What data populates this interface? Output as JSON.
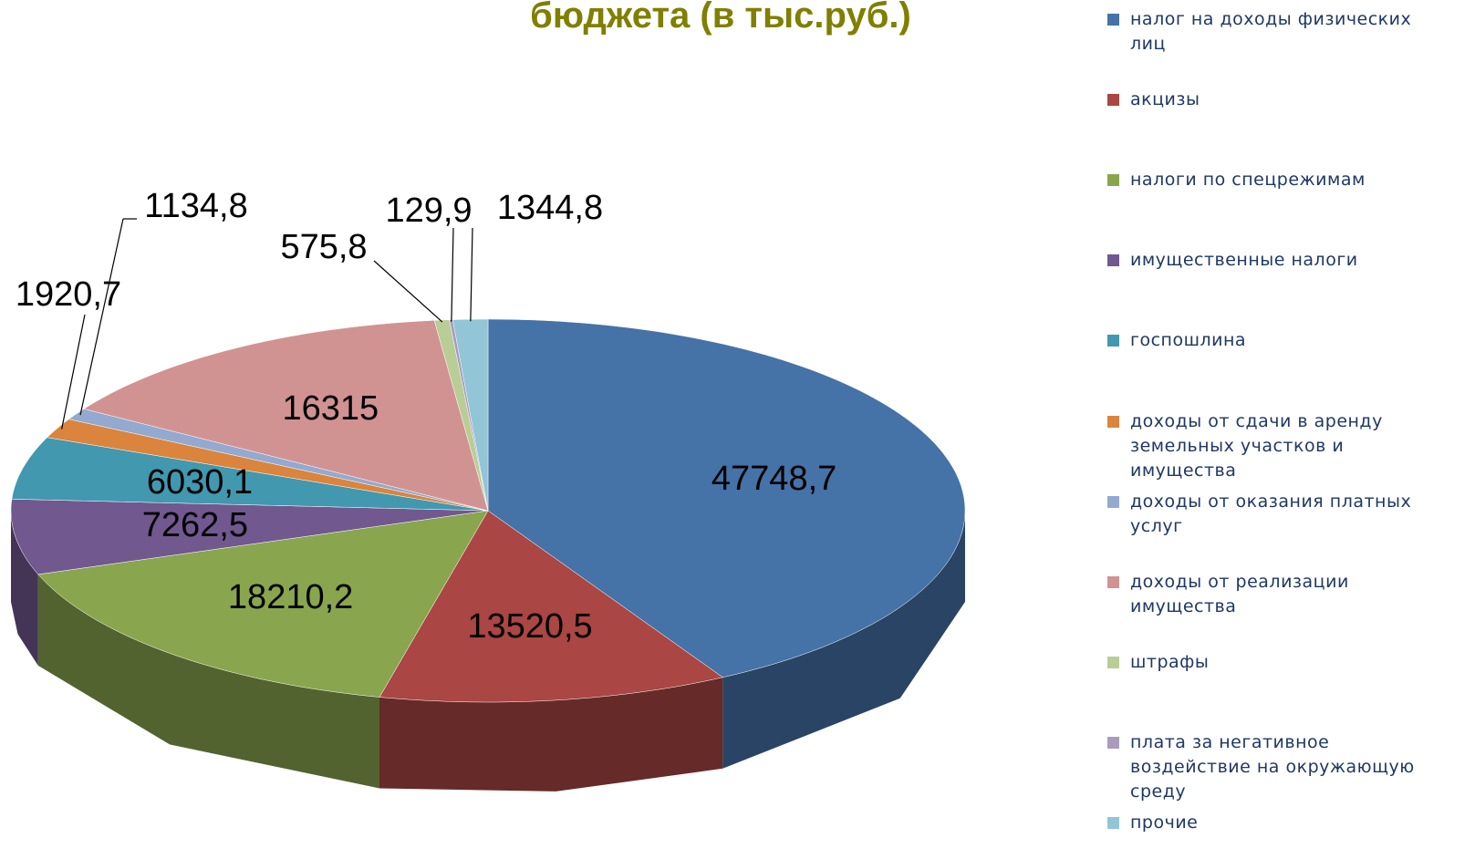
{
  "chart_data": {
    "type": "pie3d",
    "title": "бюджета (в тыс.руб.)",
    "categories": [
      "налог на доходы физических лиц",
      "акцизы",
      "налоги по спецрежимам",
      "имущественные налоги",
      "госпошлина",
      "доходы от сдачи в аренду земельных участков и имущества",
      "доходы от оказания платных услуг",
      "доходы от реализации имущества",
      "штрафы",
      "плата за негативное воздействие на окружающую среду",
      "прочие"
    ],
    "values": [
      47748.7,
      13520.5,
      18210.2,
      7262.5,
      6030.1,
      1920.7,
      1134.8,
      16315,
      575.8,
      129.9,
      1344.8
    ],
    "value_labels": [
      "47748,7",
      "13520,5",
      "18210,2",
      "7262,5",
      "6030,1",
      "1920,7",
      "1134,8",
      "16315",
      "575,8",
      "129,9",
      "1344,8"
    ],
    "colors": [
      "#4572a7",
      "#aa4643",
      "#89a54e",
      "#71588f",
      "#4198af",
      "#db843d",
      "#93a9cf",
      "#d19392",
      "#b9cd96",
      "#a99bbd",
      "#92c5d6"
    ],
    "legend": "right"
  }
}
